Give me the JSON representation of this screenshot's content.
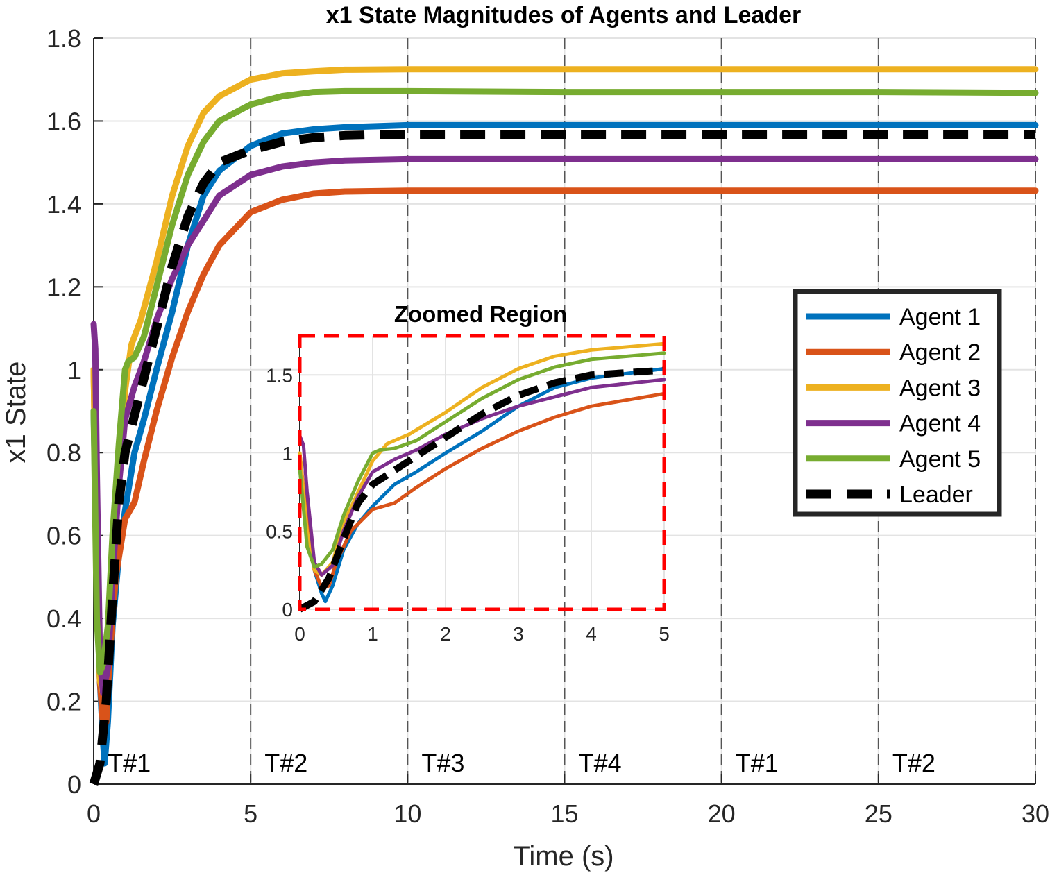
{
  "chart_data": [
    {
      "type": "line",
      "title": "x1 State Magnitudes of Agents and Leader",
      "xlabel": "Time (s)",
      "ylabel": "x1 State",
      "xlim": [
        0,
        30
      ],
      "ylim": [
        0,
        1.8
      ],
      "xticks": [
        0,
        5,
        10,
        15,
        20,
        25,
        30
      ],
      "yticks": [
        0,
        0.2,
        0.4,
        0.6,
        0.8,
        1,
        1.2,
        1.4,
        1.6,
        1.8
      ],
      "xtick_labels": [
        "0",
        "5",
        "10",
        "15",
        "20",
        "25",
        "30"
      ],
      "ytick_labels": [
        "0",
        "0.2",
        "0.4",
        "0.6",
        "0.8",
        "1",
        "1.2",
        "1.4",
        "1.6",
        "1.8"
      ],
      "grid": true,
      "legend_position": "right",
      "switch_times": [
        5,
        10,
        15,
        20,
        25,
        30
      ],
      "topology_labels": [
        {
          "x": 0.4,
          "text": "T#1"
        },
        {
          "x": 5.4,
          "text": "T#2"
        },
        {
          "x": 10.4,
          "text": "T#3"
        },
        {
          "x": 15.4,
          "text": "T#4"
        },
        {
          "x": 20.4,
          "text": "T#1"
        },
        {
          "x": 25.4,
          "text": "T#2"
        }
      ],
      "series": [
        {
          "name": "Agent 1",
          "color": "#0072BD",
          "style": "solid",
          "x": [
            0,
            0.1,
            0.2,
            0.3,
            0.35,
            0.45,
            0.6,
            0.8,
            1.0,
            1.3,
            1.6,
            2.0,
            2.5,
            3.0,
            3.5,
            4.0,
            5.0,
            6.0,
            7.0,
            8.0,
            10.0,
            15.0,
            20.0,
            25.0,
            30.0
          ],
          "y": [
            0.9,
            0.5,
            0.25,
            0.1,
            0.05,
            0.15,
            0.38,
            0.55,
            0.66,
            0.8,
            0.88,
            1.0,
            1.14,
            1.3,
            1.42,
            1.48,
            1.54,
            1.57,
            1.58,
            1.585,
            1.59,
            1.59,
            1.59,
            1.59,
            1.59
          ]
        },
        {
          "name": "Agent 2",
          "color": "#D95319",
          "style": "solid",
          "x": [
            0,
            0.1,
            0.2,
            0.3,
            0.4,
            0.5,
            0.7,
            1.0,
            1.3,
            1.6,
            2.0,
            2.5,
            3.0,
            3.5,
            4.0,
            5.0,
            6.0,
            7.0,
            8.0,
            10.0,
            15.0,
            20.0,
            25.0,
            30.0
          ],
          "y": [
            1.0,
            0.55,
            0.25,
            0.14,
            0.15,
            0.3,
            0.5,
            0.64,
            0.68,
            0.78,
            0.9,
            1.03,
            1.14,
            1.23,
            1.3,
            1.38,
            1.41,
            1.425,
            1.43,
            1.432,
            1.432,
            1.432,
            1.432,
            1.432
          ]
        },
        {
          "name": "Agent 3",
          "color": "#EDB120",
          "style": "solid",
          "x": [
            0,
            0.1,
            0.2,
            0.3,
            0.45,
            0.6,
            0.8,
            1.0,
            1.2,
            1.5,
            2.0,
            2.5,
            3.0,
            3.5,
            4.0,
            5.0,
            6.0,
            7.0,
            8.0,
            10.0,
            15.0,
            20.0,
            25.0,
            30.0
          ],
          "y": [
            1.0,
            0.5,
            0.25,
            0.22,
            0.3,
            0.55,
            0.75,
            0.95,
            1.06,
            1.12,
            1.26,
            1.42,
            1.54,
            1.62,
            1.66,
            1.7,
            1.715,
            1.72,
            1.724,
            1.725,
            1.725,
            1.725,
            1.725,
            1.725
          ]
        },
        {
          "name": "Agent 4",
          "color": "#7E2F8E",
          "style": "solid",
          "x": [
            0,
            0.05,
            0.1,
            0.2,
            0.3,
            0.45,
            0.6,
            0.8,
            1.0,
            1.3,
            1.6,
            2.0,
            2.5,
            3.0,
            3.5,
            4.0,
            5.0,
            6.0,
            7.0,
            8.0,
            10.0,
            15.0,
            20.0,
            25.0,
            30.0
          ],
          "y": [
            1.11,
            1.05,
            0.75,
            0.3,
            0.22,
            0.28,
            0.5,
            0.72,
            0.88,
            0.96,
            1.02,
            1.12,
            1.22,
            1.3,
            1.36,
            1.42,
            1.47,
            1.49,
            1.5,
            1.505,
            1.508,
            1.508,
            1.508,
            1.508,
            1.508
          ]
        },
        {
          "name": "Agent 5",
          "color": "#77AC30",
          "style": "solid",
          "x": [
            0,
            0.1,
            0.2,
            0.3,
            0.45,
            0.6,
            0.8,
            1.0,
            1.1,
            1.3,
            1.6,
            2.0,
            2.5,
            3.0,
            3.5,
            4.0,
            5.0,
            6.0,
            7.0,
            8.0,
            10.0,
            15.0,
            20.0,
            25.0,
            30.0
          ],
          "y": [
            0.9,
            0.4,
            0.27,
            0.29,
            0.38,
            0.6,
            0.82,
            1.0,
            1.02,
            1.03,
            1.08,
            1.2,
            1.35,
            1.47,
            1.55,
            1.6,
            1.64,
            1.66,
            1.67,
            1.672,
            1.672,
            1.67,
            1.67,
            1.67,
            1.668
          ]
        },
        {
          "name": "Leader",
          "color": "#000000",
          "style": "dashed",
          "x": [
            0,
            0.2,
            0.4,
            0.6,
            0.8,
            1.0,
            1.5,
            2.0,
            2.5,
            3.0,
            3.5,
            4.0,
            5.0,
            6.0,
            7.0,
            8.0,
            9.0,
            10.0,
            15.0,
            20.0,
            25.0,
            30.0
          ],
          "y": [
            0,
            0.05,
            0.2,
            0.45,
            0.68,
            0.8,
            0.95,
            1.1,
            1.25,
            1.37,
            1.45,
            1.5,
            1.53,
            1.55,
            1.56,
            1.565,
            1.567,
            1.568,
            1.568,
            1.568,
            1.568,
            1.568
          ]
        }
      ]
    },
    {
      "type": "line",
      "title": "Zoomed Region",
      "xlim": [
        0,
        5
      ],
      "ylim": [
        0,
        1.75
      ],
      "xticks": [
        0,
        1,
        2,
        3,
        4,
        5
      ],
      "yticks": [
        0,
        0.5,
        1,
        1.5
      ],
      "xtick_labels": [
        "0",
        "1",
        "2",
        "3",
        "4",
        "5"
      ],
      "ytick_labels": [
        "0",
        "0.5",
        "1",
        "1.5"
      ],
      "grid": true,
      "border_color": "#FF0000",
      "border_style": "dashed"
    }
  ]
}
